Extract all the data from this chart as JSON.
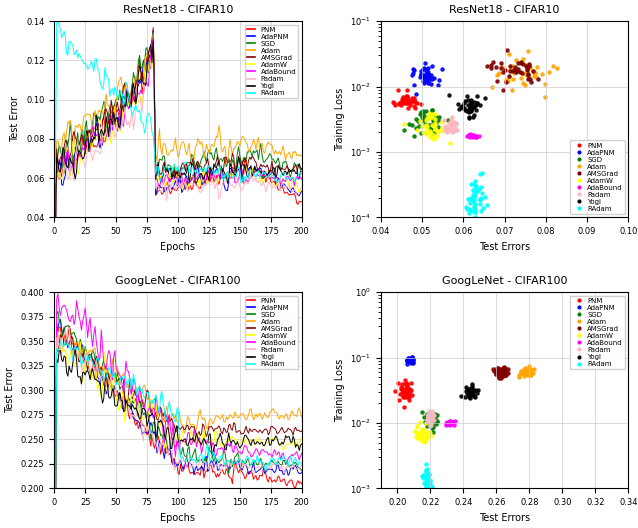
{
  "optimizers": [
    "PNM",
    "AdaPNM",
    "SGD",
    "Adam",
    "AMSGrad",
    "AdamW",
    "AdaBound",
    "Padam",
    "Yogi",
    "RAdam"
  ],
  "colors": {
    "PNM": "#ff0000",
    "AdaPNM": "#0000ff",
    "SGD": "#008000",
    "Adam": "#ffa500",
    "AMSGrad": "#800000",
    "AdamW": "#ffff00",
    "AdaBound": "#ff00ff",
    "Padam": "#ffb6c1",
    "Yogi": "#000000",
    "RAdam": "#00ffff"
  },
  "resnet_ylim": [
    0.04,
    0.14
  ],
  "resnet_yticks": [
    0.04,
    0.06,
    0.08,
    0.1,
    0.12,
    0.14
  ],
  "googlenet_ylim": [
    0.2,
    0.4
  ],
  "googlenet_yticks": [
    0.2,
    0.225,
    0.25,
    0.275,
    0.3,
    0.325,
    0.35,
    0.375,
    0.4
  ],
  "resnet_scatter": {
    "PNM": {
      "test_c": 0.046,
      "test_r": 0.004,
      "loss_c": 0.006,
      "loss_r": 0.4,
      "n": 40
    },
    "AdaPNM": {
      "test_c": 0.051,
      "test_r": 0.004,
      "loss_c": 0.014,
      "loss_r": 0.5,
      "n": 40
    },
    "SGD": {
      "test_c": 0.051,
      "test_r": 0.006,
      "loss_c": 0.003,
      "loss_r": 0.7,
      "n": 40
    },
    "Adam": {
      "test_c": 0.075,
      "test_r": 0.01,
      "loss_c": 0.015,
      "loss_r": 0.8,
      "n": 40
    },
    "AMSGrad": {
      "test_c": 0.072,
      "test_r": 0.008,
      "loss_c": 0.018,
      "loss_r": 0.8,
      "n": 40
    },
    "AdamW": {
      "test_c": 0.052,
      "test_r": 0.005,
      "loss_c": 0.0025,
      "loss_r": 0.7,
      "n": 40
    },
    "AdaBound": {
      "test_c": 0.062,
      "test_r": 0.002,
      "loss_c": 0.0018,
      "loss_r": 0.1,
      "n": 25
    },
    "Padam": {
      "test_c": 0.057,
      "test_r": 0.003,
      "loss_c": 0.0025,
      "loss_r": 0.3,
      "n": 30
    },
    "Yogi": {
      "test_c": 0.061,
      "test_r": 0.004,
      "loss_c": 0.005,
      "loss_r": 0.5,
      "n": 40
    },
    "RAdam": {
      "test_c": 0.063,
      "test_r": 0.003,
      "loss_c": 0.0002,
      "loss_r": 1.0,
      "n": 50
    }
  },
  "googlenet_scatter": {
    "PNM": {
      "test_c": 0.205,
      "test_r": 0.005,
      "loss_c": 0.03,
      "loss_r": 0.5,
      "n": 40
    },
    "AdaPNM": {
      "test_c": 0.208,
      "test_r": 0.003,
      "loss_c": 0.09,
      "loss_r": 0.15,
      "n": 30
    },
    "SGD": {
      "test_c": 0.22,
      "test_r": 0.005,
      "loss_c": 0.011,
      "loss_r": 0.4,
      "n": 40
    },
    "Adam": {
      "test_c": 0.278,
      "test_r": 0.007,
      "loss_c": 0.06,
      "loss_r": 0.25,
      "n": 40
    },
    "AMSGrad": {
      "test_c": 0.262,
      "test_r": 0.006,
      "loss_c": 0.06,
      "loss_r": 0.25,
      "n": 40
    },
    "AdamW": {
      "test_c": 0.215,
      "test_r": 0.006,
      "loss_c": 0.007,
      "loss_r": 0.5,
      "n": 40
    },
    "AdaBound": {
      "test_c": 0.232,
      "test_r": 0.004,
      "loss_c": 0.01,
      "loss_r": 0.1,
      "n": 25
    },
    "Padam": {
      "test_c": 0.22,
      "test_r": 0.004,
      "loss_c": 0.012,
      "loss_r": 0.3,
      "n": 30
    },
    "Yogi": {
      "test_c": 0.244,
      "test_r": 0.005,
      "loss_c": 0.03,
      "loss_r": 0.3,
      "n": 40
    },
    "RAdam": {
      "test_c": 0.218,
      "test_r": 0.004,
      "loss_c": 0.0013,
      "loss_r": 0.7,
      "n": 50
    }
  }
}
